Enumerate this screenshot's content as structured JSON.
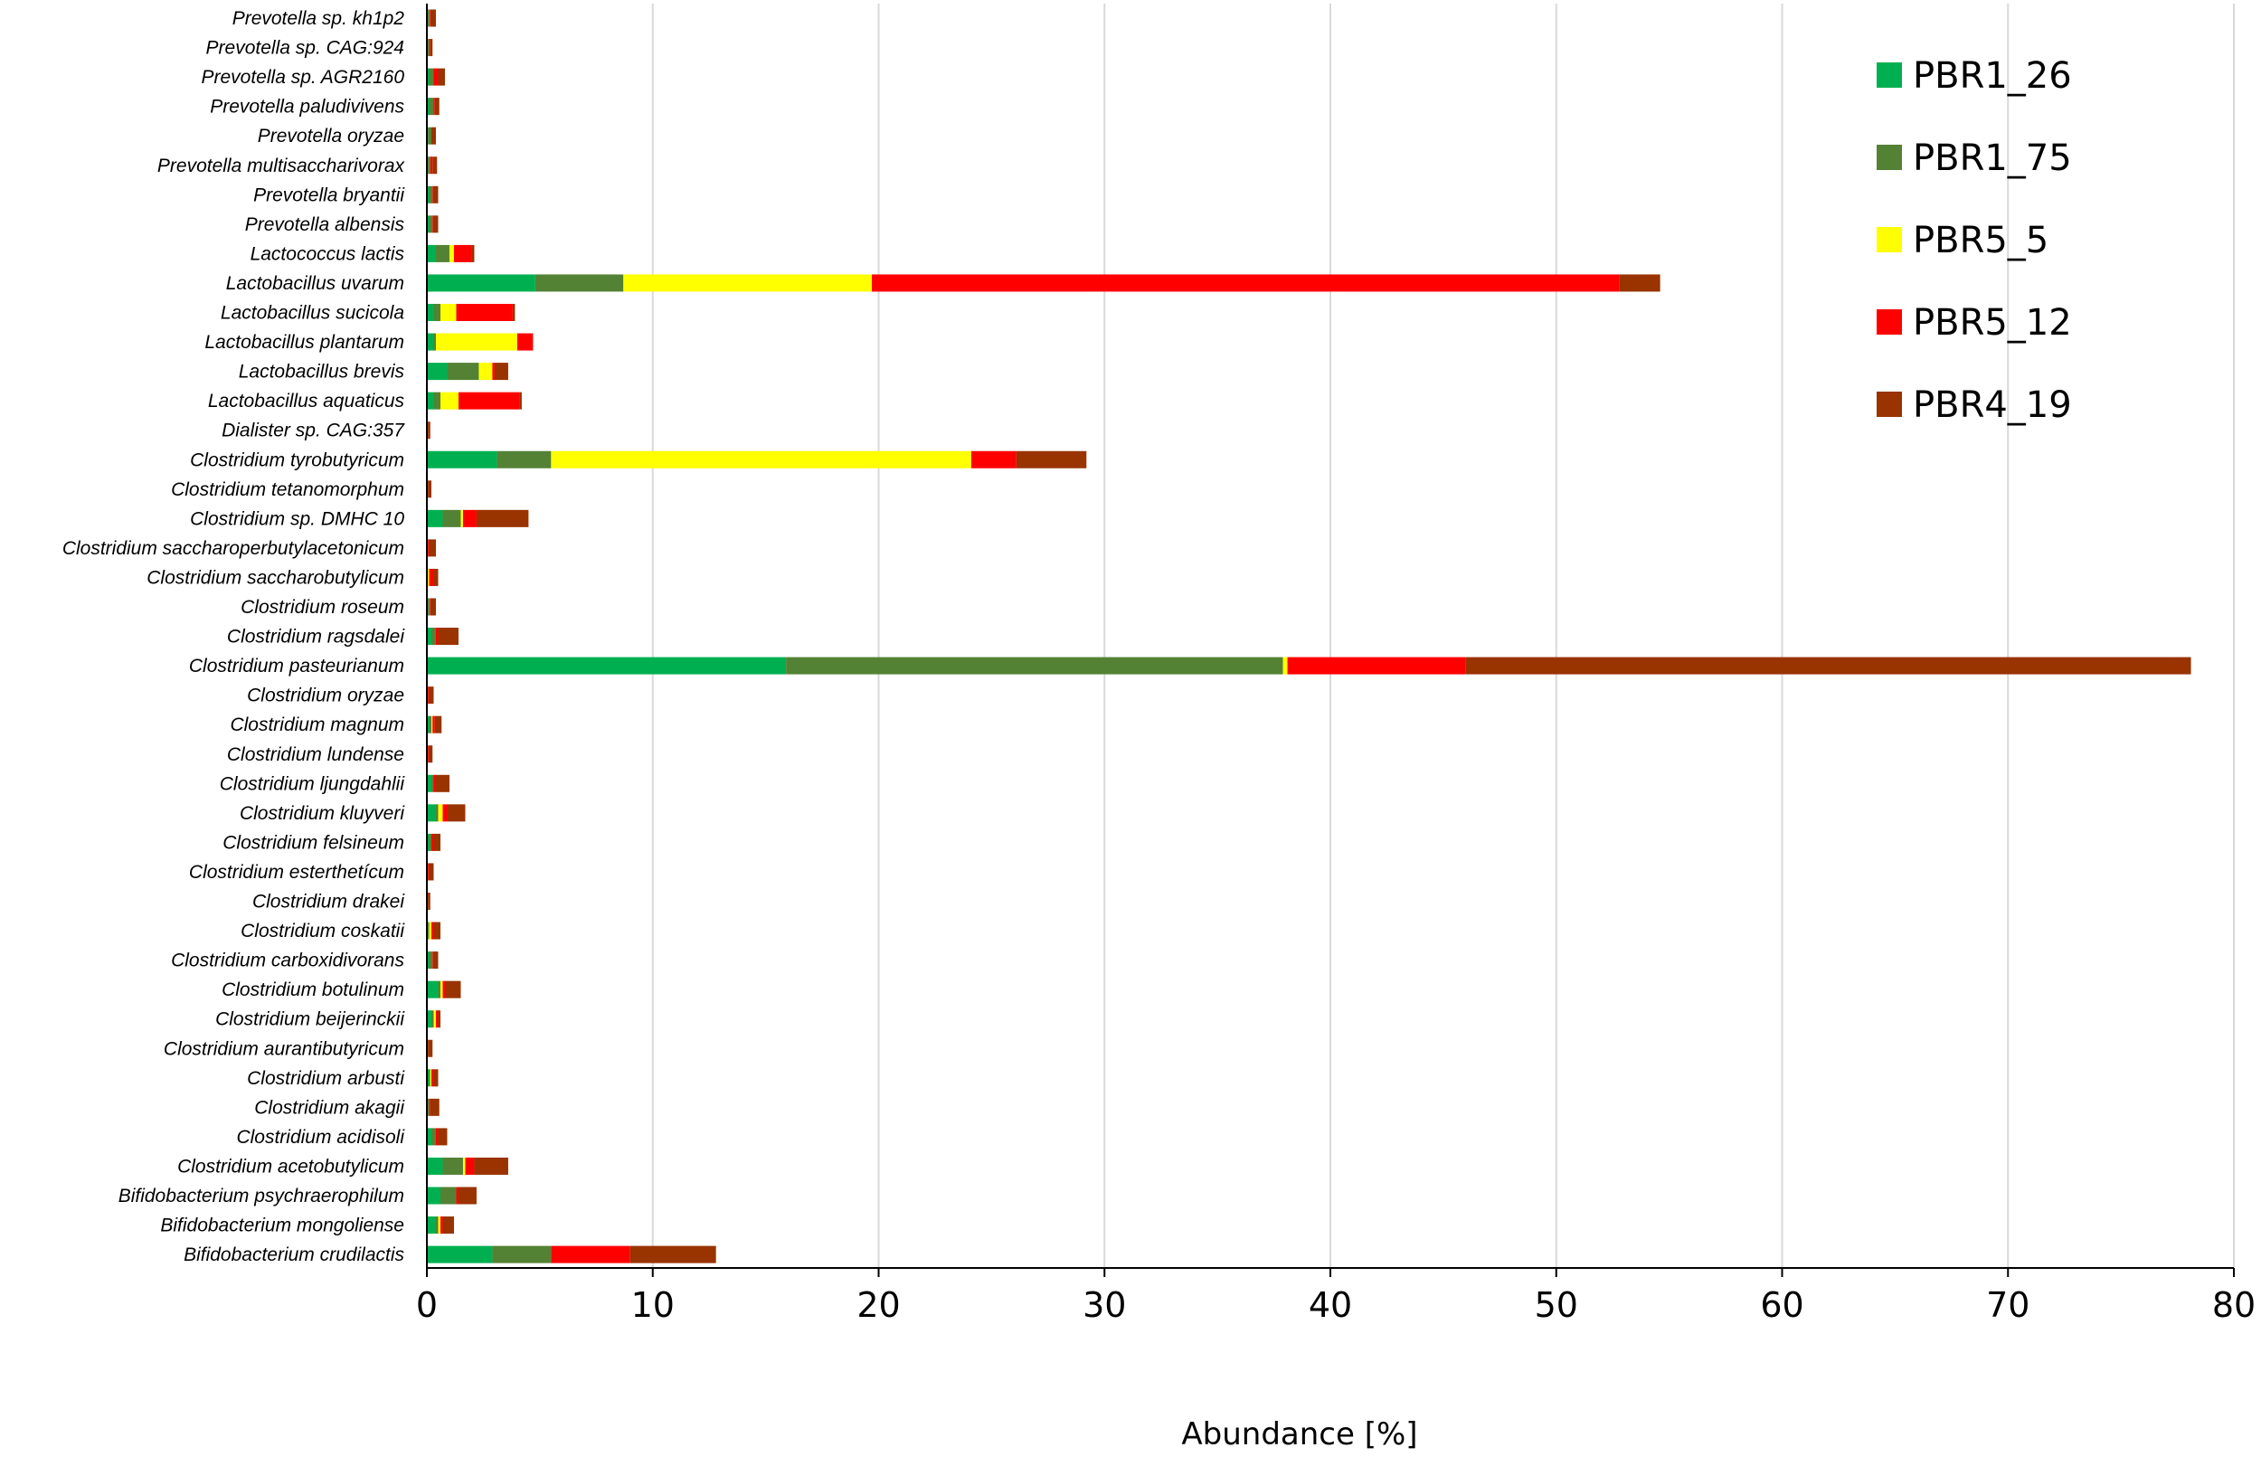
{
  "chart_data": {
    "type": "bar",
    "orientation": "horizontal",
    "stacked": true,
    "xlabel": "Abundance [%]",
    "ylabel": "",
    "title": "",
    "xlim": [
      0,
      80
    ],
    "xticks": [
      0,
      10,
      20,
      30,
      40,
      50,
      60,
      70,
      80
    ],
    "grid": "vertical",
    "legend_position": "top-right",
    "categories": [
      "Prevotella sp. kh1p2",
      "Prevotella sp. CAG:924",
      "Prevotella sp. AGR2160",
      "Prevotella paludivivens",
      "Prevotella oryzae",
      "Prevotella multisaccharivorax",
      "Prevotella bryantii",
      "Prevotella albensis",
      "Lactococcus lactis",
      "Lactobacillus uvarum",
      "Lactobacillus sucicola",
      "Lactobacillus plantarum",
      "Lactobacillus brevis",
      "Lactobacillus aquaticus",
      "Dialister sp. CAG:357",
      "Clostridium tyrobutyricum",
      "Clostridium tetanomorphum",
      "Clostridium sp. DMHC 10",
      "Clostridium saccharoperbutylacetonicum",
      "Clostridium saccharobutylicum",
      "Clostridium roseum",
      "Clostridium ragsdalei",
      "Clostridium pasteurianum",
      "Clostridium oryzae",
      "Clostridium magnum",
      "Clostridium lundense",
      "Clostridium ljungdahlii",
      "Clostridium kluyveri",
      "Clostridium felsineum",
      "Clostridium esterthetícum",
      "Clostridium drakei",
      "Clostridium coskatii",
      "Clostridium carboxidivorans",
      "Clostridium botulinum",
      "Clostridium beijerinckii",
      "Clostridium aurantibutyricum",
      "Clostridium arbusti",
      "Clostridium akagii",
      "Clostridium acidisoli",
      "Clostridium acetobutylicum",
      "Bifidobacterium psychraerophilum",
      "Bifidobacterium mongoliense",
      "Bifidobacterium crudilactis"
    ],
    "series": [
      {
        "name": "PBR1_26",
        "color": "#00b050",
        "values": [
          0.05,
          0.05,
          0.1,
          0.1,
          0.05,
          0.05,
          0.1,
          0.1,
          0.4,
          4.8,
          0.3,
          0.3,
          0.9,
          0.3,
          0.0,
          3.1,
          0.0,
          0.7,
          0.0,
          0.0,
          0.05,
          0.2,
          15.9,
          0.0,
          0.1,
          0.0,
          0.2,
          0.4,
          0.1,
          0.0,
          0.0,
          0.05,
          0.1,
          0.5,
          0.2,
          0.0,
          0.1,
          0.05,
          0.2,
          0.7,
          0.6,
          0.4,
          2.9
        ]
      },
      {
        "name": "PBR1_75",
        "color": "#548235",
        "values": [
          0.1,
          0.05,
          0.2,
          0.2,
          0.15,
          0.1,
          0.15,
          0.15,
          0.6,
          3.9,
          0.3,
          0.1,
          1.4,
          0.3,
          0.0,
          2.4,
          0.0,
          0.8,
          0.05,
          0.05,
          0.1,
          0.2,
          22.0,
          0.05,
          0.1,
          0.05,
          0.1,
          0.1,
          0.1,
          0.05,
          0.0,
          0.05,
          0.15,
          0.1,
          0.1,
          0.0,
          0.05,
          0.05,
          0.2,
          0.9,
          0.7,
          0.1,
          2.6
        ]
      },
      {
        "name": "PBR5_5",
        "color": "#ffff00",
        "values": [
          0.0,
          0.0,
          0.0,
          0.0,
          0.0,
          0.0,
          0.0,
          0.0,
          0.2,
          11.0,
          0.7,
          3.6,
          0.6,
          0.8,
          0.0,
          18.6,
          0.0,
          0.1,
          0.0,
          0.05,
          0.0,
          0.0,
          0.2,
          0.0,
          0.05,
          0.0,
          0.0,
          0.2,
          0.0,
          0.0,
          0.0,
          0.1,
          0.0,
          0.1,
          0.1,
          0.0,
          0.05,
          0.0,
          0.0,
          0.1,
          0.0,
          0.1,
          0.0
        ]
      },
      {
        "name": "PBR5_12",
        "color": "#ff0000",
        "values": [
          0.05,
          0.05,
          0.2,
          0.05,
          0.0,
          0.1,
          0.05,
          0.05,
          0.8,
          33.1,
          2.5,
          0.7,
          0.1,
          2.7,
          0.05,
          2.0,
          0.05,
          0.6,
          0.05,
          0.2,
          0.05,
          0.1,
          7.9,
          0.05,
          0.1,
          0.05,
          0.1,
          0.2,
          0.1,
          0.05,
          0.05,
          0.1,
          0.05,
          0.1,
          0.1,
          0.05,
          0.1,
          0.05,
          0.1,
          0.4,
          0.1,
          0.1,
          3.5
        ]
      },
      {
        "name": "PBR4_19",
        "color": "#993300",
        "values": [
          0.2,
          0.1,
          0.3,
          0.2,
          0.2,
          0.2,
          0.2,
          0.2,
          0.1,
          1.8,
          0.1,
          0.0,
          0.6,
          0.1,
          0.1,
          3.1,
          0.15,
          2.3,
          0.3,
          0.2,
          0.2,
          0.9,
          32.1,
          0.2,
          0.3,
          0.15,
          0.6,
          0.8,
          0.3,
          0.2,
          0.1,
          0.3,
          0.2,
          0.7,
          0.1,
          0.2,
          0.2,
          0.4,
          0.4,
          1.5,
          0.8,
          0.5,
          3.8
        ]
      }
    ]
  }
}
